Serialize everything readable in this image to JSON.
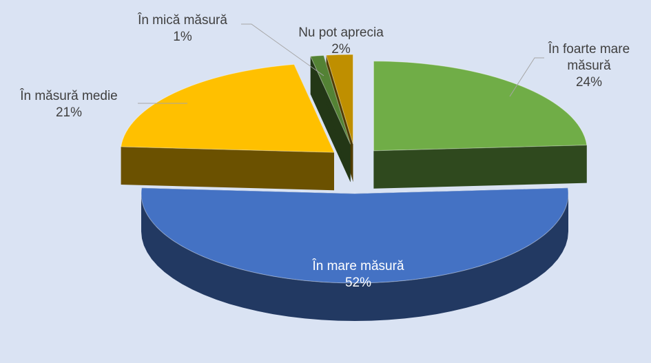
{
  "chart_data": {
    "type": "pie3d",
    "categories": [
      "În foarte mare măsură",
      "În mare măsură",
      "În măsură medie",
      "În mică măsură",
      "Nu pot aprecia"
    ],
    "values": [
      24,
      52,
      21,
      1,
      2
    ],
    "value_labels": [
      "24%",
      "52%",
      "21%",
      "1%",
      "2%"
    ],
    "colors": [
      "#70ad47",
      "#4472c4",
      "#ffc000",
      "#548235",
      "#bf8f00"
    ]
  }
}
